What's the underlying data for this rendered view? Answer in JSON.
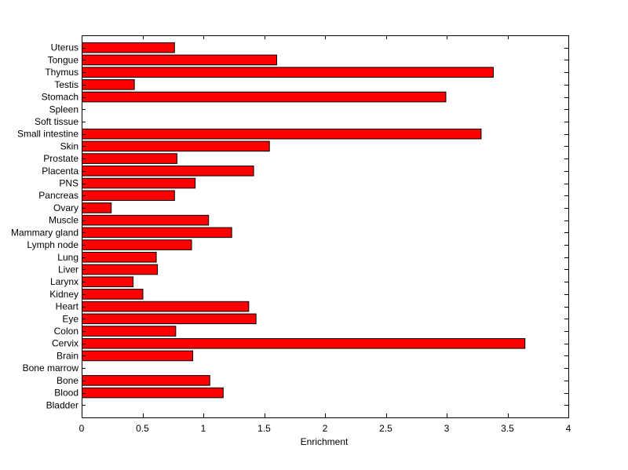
{
  "chart_data": {
    "type": "bar",
    "orientation": "horizontal",
    "title": "",
    "xlabel": "Enrichment",
    "ylabel": "",
    "xlim": [
      0,
      4
    ],
    "xticks": [
      0,
      0.5,
      1,
      1.5,
      2,
      2.5,
      3,
      3.5,
      4
    ],
    "xtick_labels": [
      "0",
      "0.5",
      "1",
      "1.5",
      "2",
      "2.5",
      "3",
      "3.5",
      "4"
    ],
    "grid": false,
    "bar_color": "#ff0000",
    "edge_color": "#000000",
    "categories": [
      "Bladder",
      "Blood",
      "Bone",
      "Bone marrow",
      "Brain",
      "Cervix",
      "Colon",
      "Eye",
      "Heart",
      "Kidney",
      "Larynx",
      "Liver",
      "Lung",
      "Lymph node",
      "Mammary gland",
      "Muscle",
      "Ovary",
      "Pancreas",
      "PNS",
      "Placenta",
      "Prostate",
      "Skin",
      "Small intestine",
      "Soft tissue",
      "Spleen",
      "Stomach",
      "Testis",
      "Thymus",
      "Tongue",
      "Uterus"
    ],
    "values": [
      0,
      1.16,
      1.05,
      0,
      0.91,
      3.64,
      0.77,
      1.43,
      1.37,
      0.5,
      0.42,
      0.62,
      0.61,
      0.9,
      1.23,
      1.04,
      0.24,
      0.76,
      0.93,
      1.41,
      0.78,
      1.54,
      3.28,
      0,
      0,
      2.99,
      0.43,
      3.38,
      1.6,
      0.76
    ]
  }
}
